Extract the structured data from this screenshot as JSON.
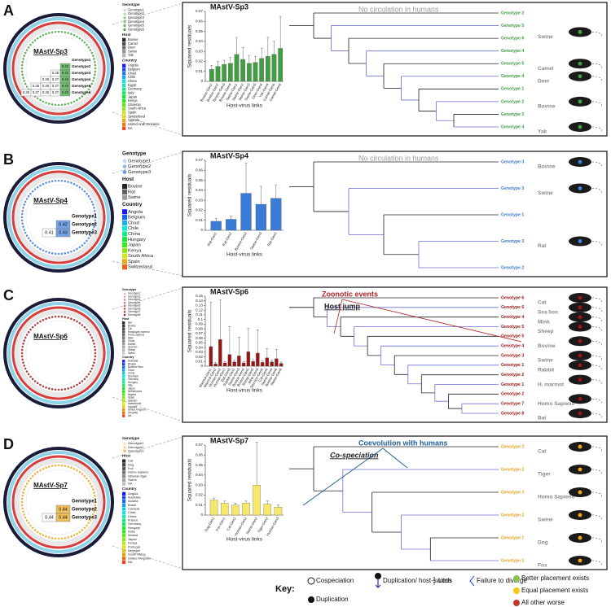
{
  "chart_data": [
    {
      "type": "bar",
      "title": "MAstV-Sp3",
      "ylabel": "Squared residuals",
      "xlabel": "Host-virus links",
      "color": "#3f9e3f",
      "categories": [
        "Bovine-Gen1",
        "Bovine-Gen2",
        "Bovine-Gen3",
        "Bovine-Gen4",
        "Swine-Gen1",
        "Swine-Gen2",
        "Swine-Gen3",
        "Swine-Gen5",
        "Deer-Gen4",
        "Yak-Gen4",
        "Camel-Gen5",
        "Camel-Gen6"
      ],
      "values": [
        0.012,
        0.015,
        0.017,
        0.018,
        0.027,
        0.022,
        0.018,
        0.019,
        0.023,
        0.025,
        0.027,
        0.033
      ],
      "errors": [
        0.004,
        0.005,
        0.004,
        0.006,
        0.017,
        0.012,
        0.008,
        0.006,
        0.01,
        0.019,
        0.013,
        0.032
      ],
      "ylim": [
        0,
        0.07
      ],
      "yticks": [
        0,
        0.01,
        0.02,
        0.03,
        0.04,
        0.05,
        0.06,
        0.07
      ]
    },
    {
      "type": "bar",
      "title": "MAstV-Sp4",
      "ylabel": "Squared residuals",
      "xlabel": "Host-virus links",
      "color": "#3a7bd5",
      "categories": [
        "Rat-Gen1",
        "Rat-Gen2",
        "Bovine-Gen3",
        "Swine-Gen3",
        "Rat-Gen3"
      ],
      "values": [
        0.009,
        0.011,
        0.037,
        0.026,
        0.032
      ],
      "errors": [
        0.003,
        0.003,
        0.03,
        0.018,
        0.013
      ],
      "ylim": [
        0,
        0.07
      ],
      "yticks": [
        0,
        0.01,
        0.02,
        0.03,
        0.04,
        0.05,
        0.06,
        0.07
      ]
    },
    {
      "type": "bar",
      "title": "MAstV-Sp6",
      "ylabel": "Squared residuals",
      "xlabel": "Host-virus links",
      "color": "#9b1414",
      "categories": [
        "Marmot-Gen1",
        "Marmot-Gen2",
        "Human-Gen2",
        "Human-Gen7",
        "Bat-Gen8",
        "Rabbit-Gen1",
        "Swine-Gen3",
        "Bovine-Gen4",
        "Bovine-Gen5",
        "Sheep-Gen5",
        "Mink-Gen4",
        "Sea lion-Gen6",
        "Cat-Gen6",
        "Swine-Gen4",
        "Bovine-Gen6",
        "Swine-Gen6"
      ],
      "values": [
        0.042,
        0.005,
        0.057,
        0.007,
        0.025,
        0.009,
        0.022,
        0.007,
        0.031,
        0.01,
        0.028,
        0.008,
        0.018,
        0.009,
        0.016,
        0.006
      ],
      "errors": [
        0.095,
        0.003,
        0.085,
        0.003,
        0.06,
        0.004,
        0.04,
        0.003,
        0.05,
        0.004,
        0.05,
        0.003,
        0.02,
        0.004,
        0.02,
        0.003
      ],
      "ylim": [
        0,
        0.15
      ],
      "yticks": [
        0,
        0.01,
        0.02,
        0.03,
        0.04,
        0.05,
        0.06,
        0.07,
        0.08,
        0.09,
        0.1,
        0.11,
        0.12,
        0.13,
        0.14,
        0.15
      ]
    },
    {
      "type": "bar",
      "title": "MAstV-Sp7",
      "ylabel": "Squared residuals",
      "xlabel": "Host-virus links",
      "color": "#f6e86a",
      "categories": [
        "Dog-Gen1",
        "Fox-Gen1",
        "Cat-Gen2",
        "Human-Gen2",
        "Swine-Gen2",
        "Tiger-Gen2",
        "Human-Gen3"
      ],
      "values": [
        0.015,
        0.012,
        0.01,
        0.012,
        0.03,
        0.011,
        0.008
      ],
      "errors": [
        0.002,
        0.002,
        0.002,
        0.002,
        0.043,
        0.003,
        0.002
      ],
      "ylim": [
        0,
        0.07
      ],
      "yticks": [
        0,
        0.01,
        0.02,
        0.03,
        0.04,
        0.05,
        0.06,
        0.07
      ]
    }
  ],
  "panels": [
    {
      "letter": "A",
      "circle_label": "MAstV-Sp3",
      "tip_color": "#3f9e3f",
      "legend": [
        {
          "heading": "Genotype",
          "items": [
            "Genotype1",
            "Genotype2",
            "Genotype3",
            "Genotype4",
            "Genotype5",
            "Genotype6"
          ]
        },
        {
          "heading": "Host",
          "items": [
            "Bovine",
            "Camel",
            "Deer",
            "Swine",
            "Yak"
          ]
        },
        {
          "heading": "Country",
          "items": [
            "Angola",
            "Belgium",
            "Chad",
            "Chile",
            "China",
            "Egypt",
            "Germany",
            "Italy",
            "Japan",
            "Kenya",
            "Slovenia",
            "South Africa",
            "Spain",
            "Switzerland",
            "Uganda",
            "United Arab Emirates",
            "NA"
          ]
        }
      ],
      "matrix": {
        "rows": [
          "Genotype1",
          "Genotype2",
          "Genotype3",
          "Genotype4",
          "Genotype5",
          "Genotype6"
        ],
        "values": [
          [],
          [
            0.42
          ],
          [
            0.36,
            0.42
          ],
          [
            0.36,
            0.37,
            0.43
          ],
          [
            0.36,
            0.36,
            0.37,
            0.43
          ],
          [
            0.35,
            0.37,
            0.36,
            0.37,
            0.43
          ]
        ]
      },
      "notes": [
        {
          "text": "No circulation in humans",
          "color": "#9a9a9a"
        }
      ],
      "clades": [
        {
          "host": "Swine",
          "tips": [
            "Genotype 2",
            "Genotype 5",
            "Genotype 6",
            "Genotype 4"
          ]
        },
        {
          "host": "Camel",
          "tips": [
            "Genotype 5"
          ]
        },
        {
          "host": "Deer",
          "tips": [
            "Genotype 4"
          ]
        },
        {
          "host": "Bovine",
          "tips": [
            "Genotype 1",
            "Genotype 2",
            "Genotype 3"
          ]
        },
        {
          "host": "Yak",
          "tips": [
            "Genotype 4"
          ]
        }
      ]
    },
    {
      "letter": "B",
      "circle_label": "MAstV-Sp4",
      "tip_color": "#3a7bd5",
      "legend": [
        {
          "heading": "Genotype",
          "items": [
            "Genotype1",
            "Genotype2",
            "Genotype3"
          ]
        },
        {
          "heading": "Host",
          "items": [
            "Bovine",
            "Rat",
            "Swine"
          ]
        },
        {
          "heading": "Country",
          "items": [
            "Angola",
            "Belgium",
            "Chad",
            "Chile",
            "China",
            "Hungary",
            "Japan",
            "Kenya",
            "South Africa",
            "Spain",
            "Switzerland"
          ]
        }
      ],
      "matrix": {
        "rows": [
          "Genotype1",
          "Genotype2",
          "Genotype3"
        ],
        "values": [
          [],
          [
            0.42
          ],
          [
            0.41,
            0.43
          ]
        ]
      },
      "notes": [
        {
          "text": "No circulation in humans",
          "color": "#9a9a9a"
        }
      ],
      "clades": [
        {
          "host": "Bovine",
          "tips": [
            "Genotype 3"
          ]
        },
        {
          "host": "Swine",
          "tips": [
            "Genotype 3"
          ]
        },
        {
          "host": "Rat",
          "tips": [
            "Genotype 1",
            "Genotype 3",
            "Genotype 2"
          ]
        }
      ]
    },
    {
      "letter": "C",
      "circle_label": "MAstV-Sp6",
      "tip_color": "#9b1414",
      "legend": [
        {
          "heading": "Genotype",
          "items": [
            "Genotype1",
            "Genotype2",
            "Genotype3",
            "Genotype4",
            "Genotype5",
            "Genotype6",
            "Genotype7",
            "Genotype8"
          ]
        },
        {
          "heading": "Host",
          "items": [
            "Bat",
            "Bovine",
            "Cat",
            "Himalayan marmot",
            "Homo sapiens",
            "Mink",
            "Ovine",
            "Rabbit",
            "Sea lion",
            "Sheep",
            "Swine"
          ]
        },
        {
          "heading": "Country",
          "items": [
            "Australia",
            "Bhutan",
            "Burkina Faso",
            "Chad",
            "China",
            "Denmark",
            "Germany",
            "Hungary",
            "Italy",
            "Japan",
            "Netherlands",
            "Nigeria",
            "Spain",
            "Sweden",
            "Switzerland",
            "Uganda",
            "United Kingdom",
            "Uruguay",
            "NA"
          ]
        }
      ],
      "notes": [
        {
          "text": "Zoonotic events",
          "color": "#b22222"
        },
        {
          "text": "Host jump",
          "color": "#222222"
        }
      ],
      "clades": [
        {
          "host": "Cat",
          "tips": [
            "Genotype 6"
          ]
        },
        {
          "host": "Sea lion",
          "tips": [
            "Genotype 6"
          ]
        },
        {
          "host": "Mink",
          "tips": [
            "Genotype 4"
          ]
        },
        {
          "host": "Sheep",
          "tips": [
            "Genotype 5"
          ]
        },
        {
          "host": "Bovine",
          "tips": [
            "Genotype 5",
            "Genotype 4"
          ]
        },
        {
          "host": "Swine",
          "tips": [
            "Genotype 3"
          ]
        },
        {
          "host": "Rabbit",
          "tips": [
            "Genotype 1"
          ]
        },
        {
          "host": "H. marmot",
          "tips": [
            "Genotype 2",
            "Genotype 1"
          ]
        },
        {
          "host": "Homo Sapiens",
          "tips": [
            "Genotype 2",
            "Genotype 7"
          ]
        },
        {
          "host": "Bat",
          "tips": [
            "Genotype 8"
          ]
        }
      ]
    },
    {
      "letter": "D",
      "circle_label": "MAstV-Sp7",
      "tip_color": "#e8a317",
      "legend": [
        {
          "heading": "Genotype",
          "items": [
            "Genotype1",
            "Genotype2",
            "Genotype3"
          ]
        },
        {
          "heading": "Host",
          "items": [
            "Cat",
            "Dog",
            "Fox",
            "Homo sapiens",
            "Siberian tiger",
            "Swine",
            "NA"
          ]
        },
        {
          "heading": "Country",
          "items": [
            "Angola",
            "Australia",
            "Austria",
            "Brazil",
            "Canada",
            "Chad",
            "China",
            "France",
            "Germany",
            "Hungary",
            "India",
            "Ireland",
            "Japan",
            "Kenya",
            "Portugal",
            "Senegal",
            "South Africa",
            "United Kingdom",
            "NA"
          ]
        }
      ],
      "matrix": {
        "rows": [
          "Genotype1",
          "Genotype2",
          "Genotype3"
        ],
        "values": [
          [],
          [
            0.44
          ],
          [
            0.44,
            0.44
          ]
        ]
      },
      "notes": [
        {
          "text": "Coevolution with humans",
          "color": "#1f5f99"
        },
        {
          "text": "Co-speciation",
          "color": "#222222"
        }
      ],
      "clades": [
        {
          "host": "Cat",
          "tips": [
            "Genotype 2"
          ]
        },
        {
          "host": "Tiger",
          "tips": [
            "Genotype 2"
          ]
        },
        {
          "host": "Homo Sapiens",
          "tips": [
            "Genotype 3"
          ]
        },
        {
          "host": "Swine",
          "tips": [
            "Genotype 2"
          ]
        },
        {
          "host": "Dog",
          "tips": [
            "Genotype 1"
          ]
        },
        {
          "host": "Fox",
          "tips": [
            "Genotype 1"
          ]
        }
      ]
    }
  ],
  "key": {
    "title": "Key:",
    "items": [
      "Cospeciation",
      "Duplication",
      "Duplication/ host-switch",
      "Loss",
      "Failure to diverge",
      "Better placement exists",
      "Equal placement exists",
      "All other worse"
    ]
  }
}
